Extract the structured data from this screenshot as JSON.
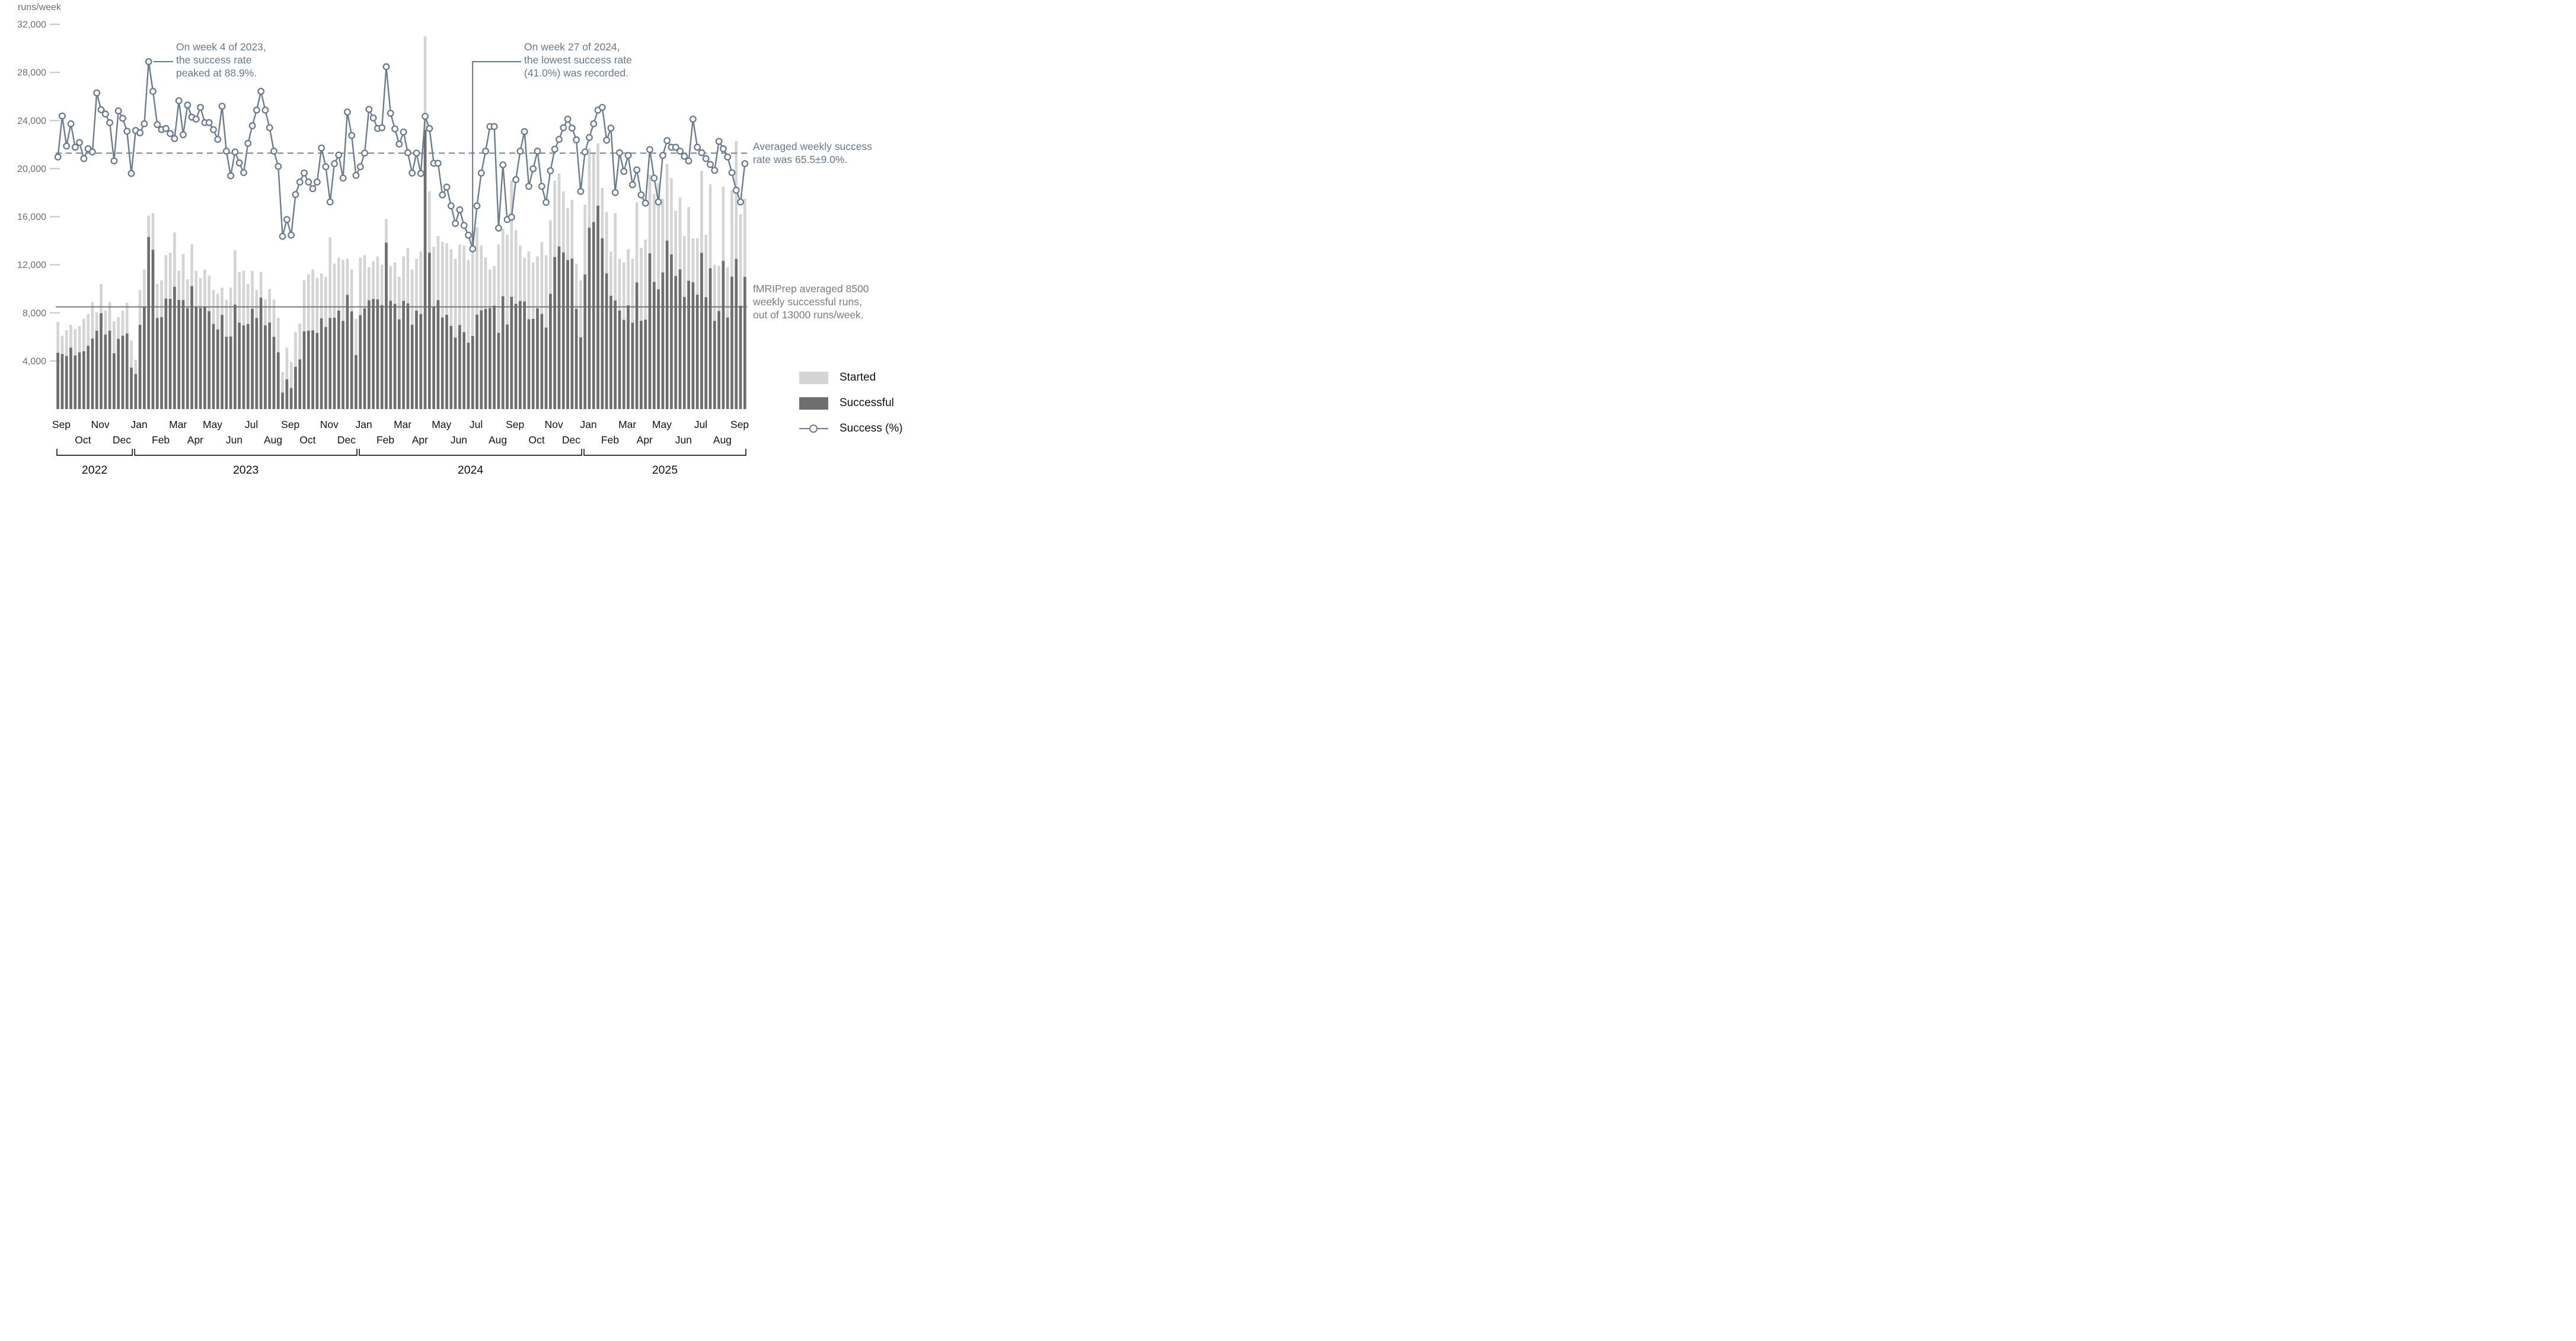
{
  "y_axis": {
    "title": "runs/week",
    "ticks": [
      {
        "label": "32,000",
        "value": 32000
      },
      {
        "label": "28,000",
        "value": 28000
      },
      {
        "label": "24,000",
        "value": 24000
      },
      {
        "label": "20,000",
        "value": 20000
      },
      {
        "label": "16,000",
        "value": 16000
      },
      {
        "label": "12,000",
        "value": 12000
      },
      {
        "label": "8,000",
        "value": 8000
      },
      {
        "label": "4,000",
        "value": 4000
      }
    ]
  },
  "legend": {
    "items": [
      {
        "label": "Started",
        "type": "swatch",
        "color": "#d4d4d4"
      },
      {
        "label": "Successful",
        "type": "swatch",
        "color": "#6e6e6e"
      },
      {
        "label": "Success (%)",
        "type": "line",
        "color": "#6b7c91"
      }
    ]
  },
  "annotations": {
    "peak": {
      "lines": [
        "On week 4 of 2023,",
        "the success rate",
        "peaked at 88.9%."
      ],
      "week": 21,
      "pct": 88.9
    },
    "low": {
      "lines": [
        "On week 27 of 2024,",
        "the lowest success rate",
        "(41.0%) was recorded."
      ],
      "week": 96,
      "pct": 41.0
    },
    "avg_rate": {
      "lines": [
        "Averaged weekly success",
        "rate was 65.5±9.0%."
      ],
      "value_pct": 65.5,
      "sd_pct": 9.0
    },
    "avg_runs": {
      "lines": [
        "fMRIPrep averaged 8500",
        "weekly successful runs,",
        "out of 13000 runs/week."
      ],
      "avg_successful": 8500,
      "avg_started": 13000
    }
  },
  "colors": {
    "bar_started": "#d4d4d4",
    "bar_successful": "#6e6e6e",
    "success_line": "#6b7c91",
    "dashed_reference": "#6b7c91",
    "solid_reference": "#6a6a6a",
    "axis_text": "#6e6e6e",
    "tick_mark": "#c9c9c9",
    "month_text": "#111111",
    "year_text": "#111111",
    "bracket": "#222222",
    "annotation_slate": "#66788c",
    "annotation_gray": "#7b7b7b"
  },
  "chart_data": {
    "type": "bar+line",
    "ylabel": "runs/week",
    "ylim": [
      0,
      32000
    ],
    "y_ticks": [
      32000,
      28000,
      24000,
      20000,
      16000,
      12000,
      8000,
      4000
    ],
    "weeks": 160,
    "grid": false,
    "legend_position": "bottom-right",
    "percent_to_axis_factor": 325,
    "series": [
      {
        "name": "Started",
        "type": "bar",
        "color": "#d4d4d4",
        "values": [
          7250,
          6100,
          6550,
          7000,
          6650,
          6900,
          7500,
          7900,
          8900,
          8050,
          10400,
          8200,
          8900,
          7300,
          7650,
          8200,
          8850,
          5700,
          4100,
          9900,
          11600,
          16100,
          16300,
          10400,
          10700,
          12800,
          13000,
          14700,
          11500,
          12900,
          10800,
          13700,
          11500,
          10900,
          11600,
          11100,
          9900,
          9600,
          10100,
          9100,
          10100,
          13200,
          11400,
          11500,
          10400,
          11500,
          9900,
          11400,
          9100,
          10000,
          9100,
          7600,
          3100,
          5100,
          3900,
          6400,
          7100,
          10700,
          11200,
          11600,
          10900,
          11300,
          11000,
          14300,
          12100,
          12600,
          12400,
          12500,
          11600,
          7500,
          12600,
          12800,
          11800,
          12300,
          12700,
          12000,
          15800,
          11900,
          12200,
          11000,
          12700,
          13400,
          11600,
          12500,
          13100,
          31000,
          18100,
          13500,
          14400,
          13900,
          13800,
          13300,
          12500,
          13700,
          13600,
          12400,
          14800,
          15100,
          13600,
          12600,
          11600,
          11900,
          13700,
          15000,
          14500,
          19000,
          14900,
          13600,
          12600,
          13100,
          12200,
          12700,
          13900,
          12800,
          15700,
          19000,
          19600,
          18100,
          16700,
          17400,
          12100,
          10700,
          17000,
          21700,
          21300,
          22100,
          18400,
          16400,
          13100,
          16300,
          12500,
          12200,
          13300,
          12500,
          17200,
          13400,
          14100,
          19500,
          17900,
          18800,
          17500,
          20400,
          19200,
          16500,
          17600,
          14400,
          16800,
          14200,
          14200,
          19800,
          14500,
          18700,
          12000,
          11900,
          18500,
          11800,
          18200,
          22300,
          16200,
          17500
        ]
      },
      {
        "name": "Successful",
        "type": "bar",
        "color": "#6e6e6e",
        "values": [
          4680,
          4580,
          4410,
          5110,
          4460,
          4710,
          4810,
          5260,
          5860,
          6510,
          7970,
          6190,
          6520,
          4640,
          5840,
          6100,
          6290,
          3440,
          2920,
          7000,
          8470,
          14310,
          13250,
          7570,
          7650,
          9190,
          9170,
          10170,
          9070,
          9060,
          8400,
          10230,
          8530,
          8410,
          8500,
          8140,
          7080,
          6620,
          7830,
          6010,
          6030,
          8690,
          7180,
          6960,
          7070,
          8340,
          7570,
          9270,
          6960,
          7200,
          6010,
          4720,
          1370,
          2470,
          1740,
          3510,
          4130,
          6460,
          6510,
          6540,
          6330,
          7550,
          6820,
          7580,
          7600,
          8190,
          7330,
          9500,
          8120,
          4490,
          7810,
          8380,
          9050,
          9160,
          9120,
          8640,
          13840,
          9010,
          8750,
          7460,
          9000,
          8790,
          7010,
          8190,
          7900,
          23220,
          13000,
          8490,
          9060,
          7620,
          7840,
          6920,
          5940,
          6990,
          6390,
          5520,
          6070,
          7850,
          8210,
          8320,
          8390,
          8600,
          6340,
          9380,
          7030,
          9330,
          8750,
          8980,
          8950,
          7470,
          7500,
          8380,
          7920,
          6770,
          9580,
          12640,
          13520,
          13030,
          12390,
          12510,
          8340,
          5960,
          11190,
          15080,
          15550,
          16910,
          14200,
          11280,
          9420,
          9030,
          8200,
          7420,
          8630,
          7180,
          10530,
          7340,
          7430,
          12950,
          10580,
          9960,
          11360,
          14010,
          12860,
          11060,
          11620,
          9320,
          10670,
          10540,
          9510,
          12990,
          9300,
          11710,
          7330,
          8150,
          12320,
          7610,
          11010,
          12490,
          8590,
          10990
        ]
      },
      {
        "name": "Success (%)",
        "type": "line",
        "color": "#6b7c91",
        "unit": "%",
        "values": [
          64.5,
          75.0,
          67.3,
          73.0,
          67.0,
          68.2,
          64.1,
          66.6,
          65.8,
          80.9,
          76.6,
          75.5,
          73.3,
          63.5,
          76.3,
          74.4,
          71.1,
          60.3,
          71.3,
          70.7,
          73.0,
          88.9,
          81.3,
          72.8,
          71.5,
          71.8,
          70.5,
          69.2,
          78.9,
          70.2,
          77.8,
          74.7,
          74.2,
          77.2,
          73.3,
          73.3,
          71.5,
          69.0,
          77.5,
          66.0,
          59.7,
          65.8,
          63.0,
          60.5,
          68.0,
          72.5,
          76.5,
          81.3,
          76.5,
          72.0,
          66.0,
          62.1,
          44.2,
          48.5,
          44.5,
          54.9,
          58.1,
          60.4,
          58.1,
          56.4,
          58.1,
          66.8,
          62.0,
          53.0,
          62.8,
          65.0,
          59.1,
          76.0,
          70.0,
          59.8,
          62.0,
          65.5,
          76.7,
          74.5,
          71.8,
          72.0,
          87.6,
          75.7,
          71.7,
          67.8,
          70.9,
          65.6,
          60.4,
          65.5,
          60.3,
          74.9,
          71.8,
          62.9,
          62.9,
          54.8,
          56.8,
          52.0,
          47.5,
          51.0,
          47.0,
          44.5,
          41.0,
          52.0,
          60.4,
          66.0,
          72.3,
          72.3,
          46.3,
          62.5,
          48.5,
          49.1,
          58.7,
          66.0,
          71.0,
          57.0,
          61.5,
          66.0,
          57.0,
          52.9,
          61.0,
          66.5,
          69.0,
          72.0,
          74.2,
          71.9,
          68.9,
          55.7,
          65.8,
          69.5,
          73.0,
          76.5,
          77.2,
          68.8,
          71.9,
          55.4,
          65.6,
          60.8,
          64.9,
          57.4,
          61.2,
          54.8,
          52.7,
          66.4,
          59.1,
          53.0,
          64.9,
          68.7,
          67.0,
          67.0,
          66.0,
          64.7,
          63.5,
          74.2,
          67.0,
          65.6,
          64.1,
          62.6,
          61.1,
          68.5,
          66.6,
          64.5,
          60.5,
          56.0,
          53.0,
          62.8
        ]
      }
    ],
    "reference_lines": [
      {
        "name": "average-success-rate",
        "style": "dashed",
        "axis": "percent",
        "value": 65.5,
        "axis_value": 21288,
        "color": "#6b7c91"
      },
      {
        "name": "average-successful-runs",
        "style": "solid",
        "axis": "runs",
        "value": 8500,
        "color": "#6a6a6a"
      }
    ],
    "x_axis": {
      "months": [
        {
          "label": "Sep",
          "week": 0,
          "row": 1
        },
        {
          "label": "Oct",
          "week": 5,
          "row": 2
        },
        {
          "label": "Nov",
          "week": 9,
          "row": 1
        },
        {
          "label": "Dec",
          "week": 14,
          "row": 2
        },
        {
          "label": "Jan",
          "week": 18,
          "row": 1
        },
        {
          "label": "Feb",
          "week": 23,
          "row": 2
        },
        {
          "label": "Mar",
          "week": 27,
          "row": 1
        },
        {
          "label": "Apr",
          "week": 31,
          "row": 2
        },
        {
          "label": "May",
          "week": 35,
          "row": 1
        },
        {
          "label": "Jun",
          "week": 40,
          "row": 2
        },
        {
          "label": "Jul",
          "week": 44,
          "row": 1
        },
        {
          "label": "Aug",
          "week": 49,
          "row": 2
        },
        {
          "label": "Sep",
          "week": 53,
          "row": 1
        },
        {
          "label": "Oct",
          "week": 57,
          "row": 2
        },
        {
          "label": "Nov",
          "week": 62,
          "row": 1
        },
        {
          "label": "Dec",
          "week": 66,
          "row": 2
        },
        {
          "label": "Jan",
          "week": 70,
          "row": 1
        },
        {
          "label": "Feb",
          "week": 75,
          "row": 2
        },
        {
          "label": "Mar",
          "week": 79,
          "row": 1
        },
        {
          "label": "Apr",
          "week": 83,
          "row": 2
        },
        {
          "label": "May",
          "week": 88,
          "row": 1
        },
        {
          "label": "Jun",
          "week": 92,
          "row": 2
        },
        {
          "label": "Jul",
          "week": 96,
          "row": 1
        },
        {
          "label": "Aug",
          "week": 101,
          "row": 2
        },
        {
          "label": "Sep",
          "week": 105,
          "row": 1
        },
        {
          "label": "Oct",
          "week": 110,
          "row": 2
        },
        {
          "label": "Nov",
          "week": 114,
          "row": 1
        },
        {
          "label": "Dec",
          "week": 118,
          "row": 2
        },
        {
          "label": "Jan",
          "week": 122,
          "row": 1
        },
        {
          "label": "Feb",
          "week": 127,
          "row": 2
        },
        {
          "label": "Mar",
          "week": 131,
          "row": 1
        },
        {
          "label": "Apr",
          "week": 135,
          "row": 2
        },
        {
          "label": "May",
          "week": 139,
          "row": 1
        },
        {
          "label": "Jun",
          "week": 144,
          "row": 2
        },
        {
          "label": "Jul",
          "week": 148,
          "row": 1
        },
        {
          "label": "Aug",
          "week": 153,
          "row": 2
        },
        {
          "label": "Sep",
          "week": 157,
          "row": 1
        }
      ],
      "years": [
        {
          "label": "2022",
          "start_week": 0,
          "end_week": 17
        },
        {
          "label": "2023",
          "start_week": 18,
          "end_week": 69
        },
        {
          "label": "2024",
          "start_week": 70,
          "end_week": 121
        },
        {
          "label": "2025",
          "start_week": 122,
          "end_week": 159
        }
      ]
    }
  }
}
